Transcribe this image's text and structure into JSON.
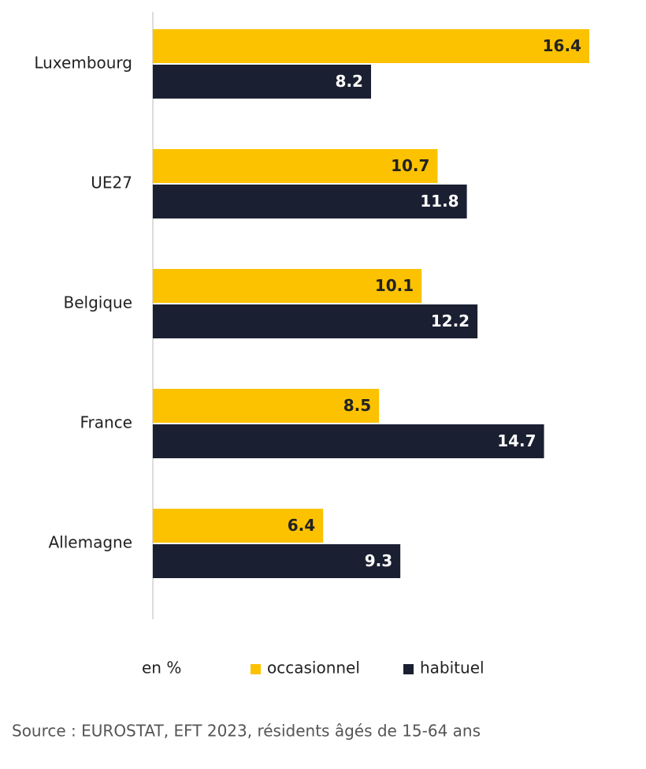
{
  "chart_data": {
    "type": "hbar",
    "categories": [
      "Luxembourg",
      "UE27",
      "Belgique",
      "France",
      "Allemagne"
    ],
    "series": [
      {
        "name": "occasionnel",
        "color": "#fcc200",
        "values": [
          16.4,
          10.7,
          10.1,
          8.5,
          6.4
        ]
      },
      {
        "name": "habituel",
        "color": "#1b1f32",
        "values": [
          8.2,
          11.8,
          12.2,
          14.7,
          9.3
        ]
      }
    ],
    "unit_label": "en %",
    "source": "Source : EUROSTAT, EFT 2023, résidents âgés de 15-64 ans"
  }
}
